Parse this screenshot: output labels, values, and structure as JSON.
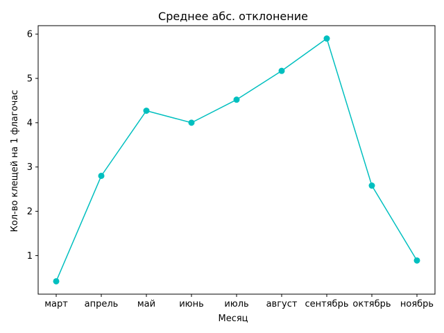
{
  "chart_data": {
    "type": "line",
    "title": "Среднее абс. отклонение",
    "xlabel": "Месяц",
    "ylabel": "Кол-во клещей на 1 флагочас",
    "categories": [
      "март",
      "апрель",
      "май",
      "июнь",
      "июль",
      "август",
      "сентябрь",
      "октябрь",
      "ноябрь"
    ],
    "series": [
      {
        "values": [
          0.42,
          2.8,
          4.27,
          4.0,
          4.52,
          5.17,
          5.9,
          2.58,
          0.89
        ],
        "color": "#00bfbf",
        "marker": "circle"
      }
    ],
    "yticks": [
      1,
      2,
      3,
      4,
      5,
      6
    ],
    "ylim": [
      0.13,
      6.19
    ],
    "grid": false,
    "legend": "none"
  }
}
